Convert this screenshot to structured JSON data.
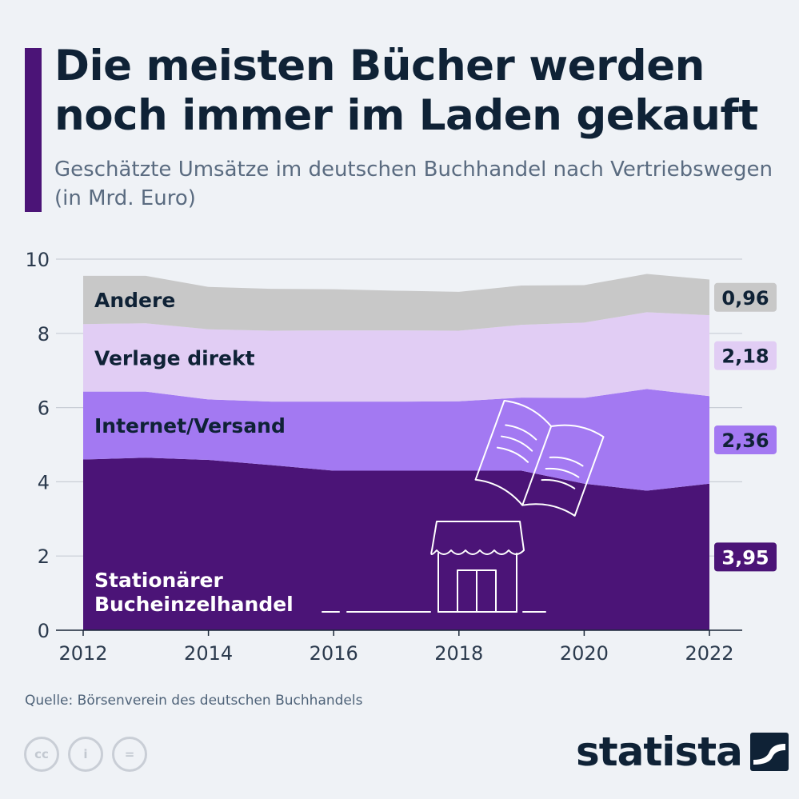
{
  "header": {
    "title": "Die meisten Bücher werden noch immer im Laden gekauft",
    "subtitle": "Geschätzte Umsätze im deutschen Buchhandel nach Vertriebswegen (in Mrd. Euro)"
  },
  "chart_data": {
    "type": "area",
    "stacked": true,
    "title": "",
    "xlabel": "",
    "ylabel": "",
    "x": [
      2012,
      2013,
      2014,
      2015,
      2016,
      2017,
      2018,
      2019,
      2020,
      2021,
      2022
    ],
    "x_ticks": [
      "2012",
      "2014",
      "2016",
      "2018",
      "2020",
      "2022"
    ],
    "y_ticks": [
      "0",
      "2",
      "4",
      "6",
      "8",
      "10"
    ],
    "ylim": [
      0,
      10
    ],
    "grid": true,
    "series": [
      {
        "name": "Stationärer Bucheinzelhandel",
        "label_lines": [
          "Stationärer",
          "Bucheinzelhandel"
        ],
        "color": "#4b1477",
        "end_label": "3,95",
        "values": [
          4.6,
          4.65,
          4.59,
          4.45,
          4.3,
          4.3,
          4.3,
          4.3,
          3.95,
          3.76,
          3.95
        ]
      },
      {
        "name": "Internet/Versand",
        "label_lines": [
          "Internet/Versand"
        ],
        "color": "#a379f2",
        "end_label": "2,36",
        "values": [
          1.83,
          1.78,
          1.63,
          1.71,
          1.86,
          1.86,
          1.87,
          1.97,
          2.31,
          2.74,
          2.36
        ]
      },
      {
        "name": "Verlage direkt",
        "label_lines": [
          "Verlage direkt"
        ],
        "color": "#e1cdf4",
        "end_label": "2,18",
        "values": [
          1.82,
          1.84,
          1.89,
          1.91,
          1.92,
          1.92,
          1.9,
          1.96,
          2.03,
          2.07,
          2.18
        ]
      },
      {
        "name": "Andere",
        "label_lines": [
          "Andere"
        ],
        "color": "#c8c8c8",
        "end_label": "0,96",
        "values": [
          1.3,
          1.28,
          1.14,
          1.13,
          1.11,
          1.07,
          1.05,
          1.06,
          1.01,
          1.03,
          0.96
        ]
      }
    ]
  },
  "footer": {
    "source": "Quelle: Börsenverein des deutschen Buchhandels",
    "license_icons": [
      "creative-commons-icon",
      "attribution-icon",
      "no-derivatives-icon"
    ],
    "license_glyphs": [
      "cc",
      "i",
      "="
    ],
    "brand": "statista"
  }
}
